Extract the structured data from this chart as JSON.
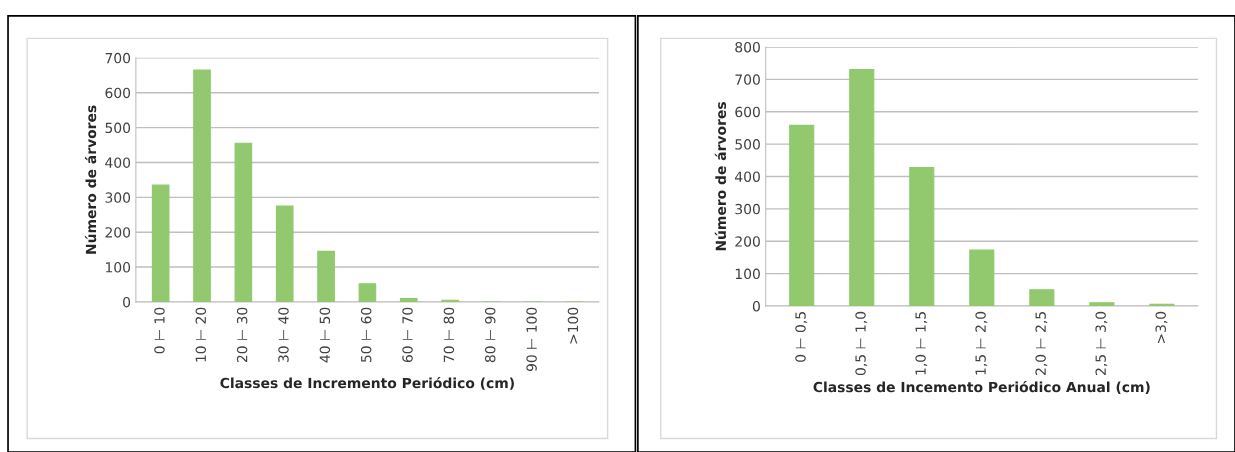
{
  "chart_data": [
    {
      "type": "bar",
      "xlabel": "Classes de Incremento Periódico (cm)",
      "ylabel": "Número de árvores",
      "categories": [
        "0 ⊢ 10",
        "10 ⊢ 20",
        "20 ⊢ 30",
        "30 ⊢ 40",
        "40 ⊢ 50",
        "50 ⊢ 60",
        "60 ⊢ 70",
        "70 ⊢ 80",
        "80 ⊢ 90",
        "90 ⊢ 100",
        ">100"
      ],
      "values": [
        335,
        665,
        455,
        275,
        145,
        52,
        10,
        5,
        0,
        0,
        0
      ],
      "color": "#92c86e",
      "ylim": [
        0,
        700
      ],
      "yticks": [
        0,
        100,
        200,
        300,
        400,
        500,
        600,
        700
      ],
      "grid": "y"
    },
    {
      "type": "bar",
      "xlabel": "Classes de Incemento Periódico Anual (cm)",
      "ylabel": "Número de árvores",
      "categories": [
        "0 ⊢ 0,5",
        "0,5 ⊢ 1,0",
        "1,0 ⊢ 1,5",
        "1,5 ⊢ 2,0",
        "2,0 ⊢ 2,5",
        "2,5 ⊢ 3,0",
        ">3,0"
      ],
      "values": [
        558,
        730,
        428,
        173,
        50,
        10,
        5
      ],
      "color": "#92c86e",
      "ylim": [
        0,
        800
      ],
      "yticks": [
        0,
        100,
        200,
        300,
        400,
        500,
        600,
        700,
        800
      ],
      "grid": "y"
    }
  ]
}
